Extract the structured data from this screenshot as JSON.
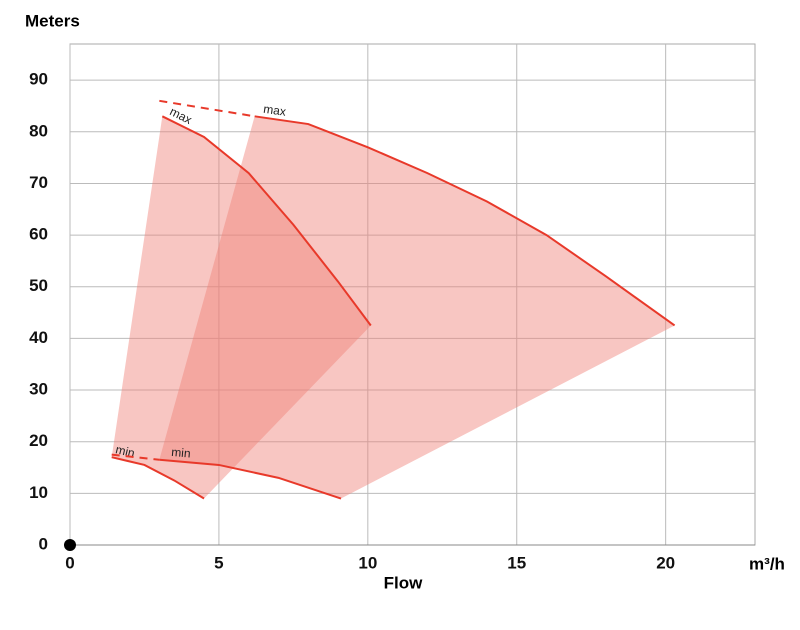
{
  "chart_data": {
    "type": "pump-curves",
    "y_label": "Meters",
    "x_label": "Flow",
    "x_unit": "m³/h",
    "xlim": [
      0,
      23
    ],
    "ylim": [
      0,
      97
    ],
    "xticks": [
      0,
      5,
      10,
      15,
      20
    ],
    "yticks": [
      0,
      10,
      20,
      30,
      40,
      50,
      60,
      70,
      80,
      90
    ],
    "grid": true,
    "fill_color": "#f08078",
    "line_color": "#e8392a",
    "regions": [
      {
        "max": {
          "label": "max",
          "x": [
            3.1,
            4.5,
            6,
            7.5,
            9,
            10.1
          ],
          "y": [
            83,
            79,
            72,
            62,
            51,
            42.5
          ]
        },
        "min": {
          "label": "min",
          "x": [
            1.4,
            2.5,
            3.5,
            4.5
          ],
          "y": [
            17,
            15.5,
            12.5,
            9
          ]
        }
      },
      {
        "max": {
          "label": "max",
          "x": [
            6.2,
            8,
            10,
            12,
            14,
            16,
            18,
            20.3
          ],
          "y": [
            83,
            81.5,
            77,
            72,
            66.5,
            60,
            52,
            42.5
          ]
        },
        "min": {
          "label": "min",
          "x": [
            3.0,
            5,
            7,
            9.1
          ],
          "y": [
            16.5,
            15.5,
            13,
            9
          ]
        }
      }
    ],
    "extensions": [
      {
        "x": [
          3.0,
          6.2
        ],
        "y": [
          86,
          83
        ]
      },
      {
        "x": [
          1.4,
          3.0
        ],
        "y": [
          17.5,
          16.5
        ]
      }
    ]
  }
}
